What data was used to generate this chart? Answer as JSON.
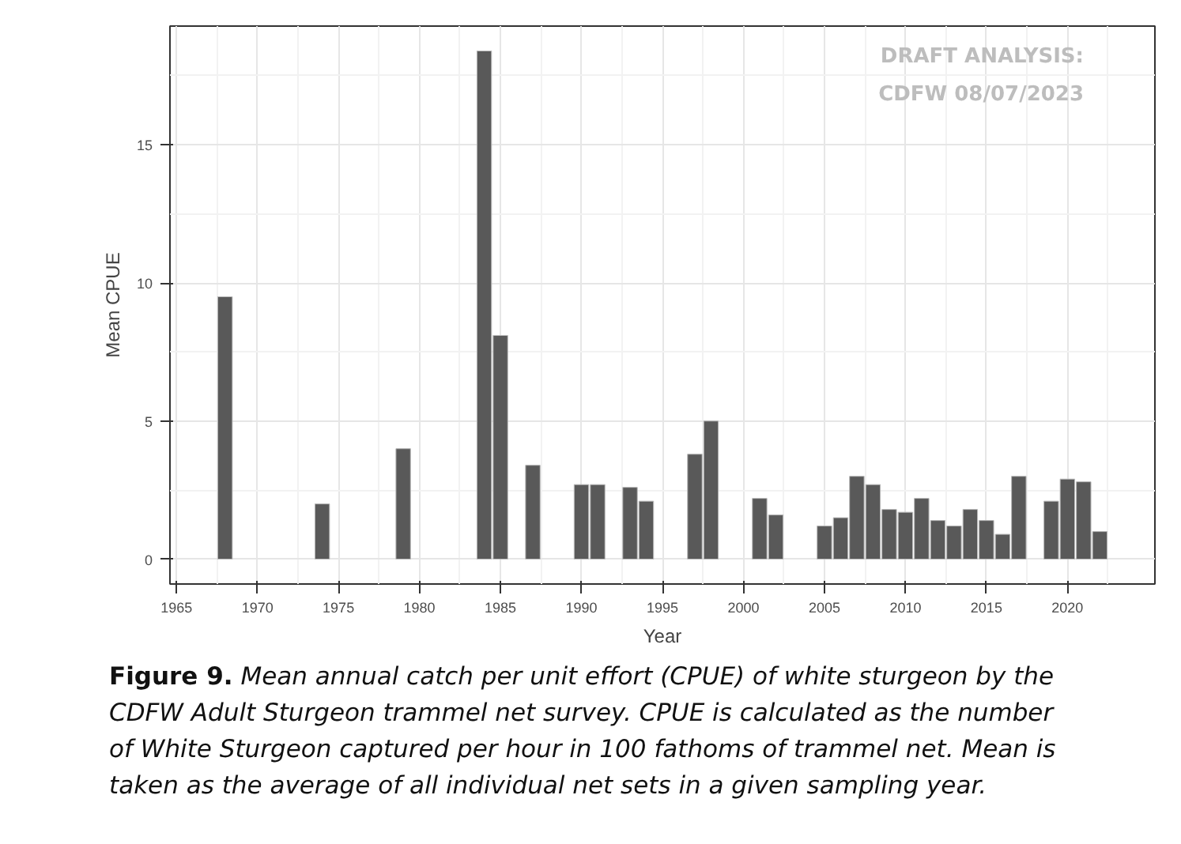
{
  "chart_data": {
    "type": "bar",
    "xlabel": "Year",
    "ylabel": "Mean CPUE",
    "x": [
      1968,
      1974,
      1979,
      1984,
      1985,
      1987,
      1990,
      1991,
      1993,
      1994,
      1997,
      1998,
      2001,
      2002,
      2005,
      2006,
      2007,
      2008,
      2009,
      2010,
      2011,
      2012,
      2013,
      2014,
      2015,
      2016,
      2017,
      2019,
      2020,
      2021,
      2022
    ],
    "values": [
      9.5,
      2.0,
      4.0,
      18.4,
      8.1,
      3.4,
      2.7,
      2.7,
      2.6,
      2.1,
      3.8,
      5.0,
      2.2,
      1.6,
      1.2,
      1.5,
      3.0,
      2.7,
      1.8,
      1.7,
      2.2,
      1.4,
      1.2,
      1.8,
      1.4,
      0.9,
      3.0,
      2.1,
      2.9,
      2.8,
      1.0
    ],
    "color": "#595959",
    "xlim": [
      1964.6,
      2025.4
    ],
    "ylim": [
      -0.9,
      19.3
    ],
    "xticks": [
      1965,
      1970,
      1975,
      1980,
      1985,
      1990,
      1995,
      2000,
      2005,
      2010,
      2015,
      2020
    ],
    "yticks": [
      0,
      5,
      10,
      15
    ],
    "grid": true,
    "annotations": [
      "DRAFT ANALYSIS:\nCDFW 08/07/2023",
      "Figure 9.",
      "Mean annual catch per unit effort (CPUE) of white sturgeon by the CDFW Adult Sturgeon trammel net survey. CPUE is calculated as the number of White Sturgeon captured per hour in 100 fathoms of trammel net. Mean is taken as the average of all individual net sets in a given sampling year."
    ]
  }
}
